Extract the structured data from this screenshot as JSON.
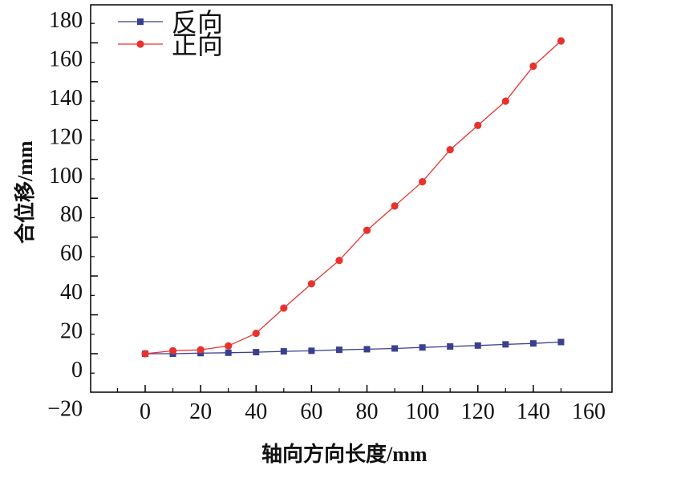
{
  "chart_data": {
    "type": "line",
    "xlabel": "轴向方向长度",
    "xunit": "/mm",
    "ylabel": "合位移",
    "yunit": "/mm",
    "xlim": [
      -20,
      160
    ],
    "ylim": [
      -20,
      180
    ],
    "x_ticks": [
      "0",
      "20",
      "40",
      "60",
      "80",
      "100",
      "120",
      "140",
      "160"
    ],
    "y_ticks": [
      "−20",
      "0",
      "20",
      "40",
      "60",
      "80",
      "100",
      "120",
      "140",
      "160",
      "180"
    ],
    "legend_position": "top-left",
    "grid": false,
    "series": [
      {
        "name": "反向",
        "color": "#3a3f8f",
        "marker": "square",
        "x": [
          0,
          10,
          20,
          30,
          40,
          50,
          60,
          70,
          80,
          90,
          100,
          110,
          120,
          130,
          140,
          150
        ],
        "y": [
          0,
          0,
          0.3,
          0.5,
          0.8,
          1.2,
          1.5,
          2.0,
          2.3,
          2.7,
          3.2,
          3.7,
          4.2,
          4.8,
          5.3,
          6.0
        ]
      },
      {
        "name": "正向",
        "color": "#e8322e",
        "marker": "circle",
        "x": [
          0,
          10,
          20,
          30,
          40,
          50,
          60,
          70,
          80,
          90,
          100,
          110,
          120,
          130,
          140,
          150
        ],
        "y": [
          0,
          1.5,
          2.0,
          4.0,
          10.5,
          23.5,
          36,
          48,
          63.5,
          76,
          88.5,
          105,
          117.5,
          130,
          148,
          161
        ]
      }
    ]
  }
}
